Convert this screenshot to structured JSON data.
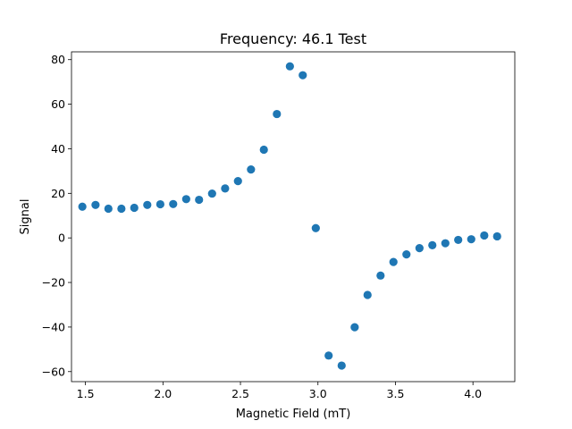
{
  "chart_data": {
    "type": "scatter",
    "title": "Frequency: 46.1 Test",
    "xlabel": "Magnetic Field (mT)",
    "ylabel": "Signal",
    "xlim": [
      1.41,
      4.27
    ],
    "ylim": [
      -64.5,
      83.5
    ],
    "xticks": [
      1.5,
      2.0,
      2.5,
      3.0,
      3.5,
      4.0
    ],
    "xtick_labels": [
      "1.5",
      "2.0",
      "2.5",
      "3.0",
      "3.5",
      "4.0"
    ],
    "yticks": [
      -60,
      -40,
      -20,
      0,
      20,
      40,
      60,
      80
    ],
    "ytick_labels": [
      "−60",
      "−40",
      "−20",
      "0",
      "20",
      "40",
      "60",
      "80"
    ],
    "grid": false,
    "marker_color": "#1f77b4",
    "series": [
      {
        "x": [
          1.48,
          1.565,
          1.648,
          1.732,
          1.815,
          1.899,
          1.983,
          2.066,
          2.15,
          2.233,
          2.317,
          2.401,
          2.484,
          2.568,
          2.651,
          2.735,
          2.819,
          2.902,
          2.986,
          3.069,
          3.153,
          3.237,
          3.32,
          3.404,
          3.487,
          3.571,
          3.655,
          3.738,
          3.822,
          3.905,
          3.989,
          4.073,
          4.156
        ],
        "y": [
          14,
          14.8,
          13.1,
          13.1,
          13.5,
          14.8,
          15.1,
          15.2,
          17.4,
          17.1,
          19.9,
          22.2,
          25.5,
          30.7,
          39.6,
          55.6,
          77,
          73,
          4.4,
          -52.8,
          -57.3,
          -40.1,
          -25.6,
          -16.9,
          -10.8,
          -7.4,
          -4.6,
          -3.3,
          -2.4,
          -0.9,
          -0.6,
          1.1,
          0.7
        ]
      }
    ]
  }
}
